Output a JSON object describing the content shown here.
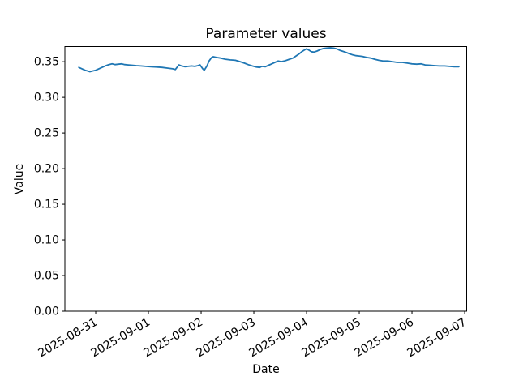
{
  "figure": {
    "background": "#ffffff",
    "text_color": "#000000",
    "spine_color": "#000000"
  },
  "chart_data": {
    "type": "line",
    "title": "Parameter values",
    "xlabel": "Date",
    "ylabel": "Value",
    "grid": false,
    "legend": "none",
    "line_color": "#1f77b4",
    "x_tick_labels": [
      "2025-08-31",
      "2025-09-01",
      "2025-09-02",
      "2025-09-03",
      "2025-09-04",
      "2025-09-05",
      "2025-09-06",
      "2025-09-07"
    ],
    "x_tick_days": [
      0,
      1,
      2,
      3,
      4,
      5,
      6,
      7
    ],
    "x_tick_rotation_deg": 30,
    "y_tick_labels": [
      "0.00",
      "0.05",
      "0.10",
      "0.15",
      "0.20",
      "0.25",
      "0.30",
      "0.35"
    ],
    "y_ticks": [
      0.0,
      0.05,
      0.1,
      0.15,
      0.2,
      0.25,
      0.3,
      0.35
    ],
    "xlim_days": [
      -0.585,
      7.038
    ],
    "ylim": [
      0,
      0.3712
    ],
    "series": [
      {
        "name": "parameter-values",
        "x_days": [
          -0.32,
          -0.26,
          -0.2,
          -0.15,
          -0.11,
          -0.06,
          0.0,
          0.06,
          0.12,
          0.18,
          0.25,
          0.31,
          0.37,
          0.43,
          0.49,
          0.55,
          0.62,
          0.69,
          0.77,
          0.86,
          0.95,
          1.05,
          1.15,
          1.26,
          1.37,
          1.46,
          1.51,
          1.58,
          1.63,
          1.69,
          1.75,
          1.82,
          1.88,
          1.94,
          1.98,
          2.03,
          2.06,
          2.11,
          2.15,
          2.2,
          2.23,
          2.29,
          2.37,
          2.46,
          2.55,
          2.65,
          2.74,
          2.82,
          2.89,
          2.97,
          3.05,
          3.11,
          3.15,
          3.22,
          3.28,
          3.34,
          3.4,
          3.46,
          3.52,
          3.58,
          3.66,
          3.74,
          3.8,
          3.86,
          3.91,
          3.95,
          4.0,
          4.05,
          4.09,
          4.14,
          4.2,
          4.26,
          4.32,
          4.38,
          4.45,
          4.51,
          4.57,
          4.63,
          4.69,
          4.75,
          4.82,
          4.88,
          4.94,
          5.0,
          5.06,
          5.14,
          5.22,
          5.29,
          5.37,
          5.45,
          5.54,
          5.63,
          5.72,
          5.82,
          5.91,
          6.0,
          6.09,
          6.17,
          6.25,
          6.34,
          6.43,
          6.52,
          6.62,
          6.71,
          6.8,
          6.89
        ],
        "values": [
          0.342,
          0.34,
          0.338,
          0.337,
          0.336,
          0.337,
          0.338,
          0.34,
          0.342,
          0.344,
          0.346,
          0.347,
          0.346,
          0.3465,
          0.347,
          0.346,
          0.3455,
          0.345,
          0.3445,
          0.344,
          0.3435,
          0.343,
          0.3425,
          0.342,
          0.341,
          0.34,
          0.339,
          0.3455,
          0.344,
          0.343,
          0.3435,
          0.344,
          0.3435,
          0.3445,
          0.3455,
          0.34,
          0.338,
          0.344,
          0.351,
          0.356,
          0.357,
          0.356,
          0.355,
          0.3535,
          0.3525,
          0.352,
          0.35,
          0.348,
          0.346,
          0.344,
          0.3425,
          0.342,
          0.3435,
          0.343,
          0.345,
          0.347,
          0.349,
          0.351,
          0.35,
          0.351,
          0.353,
          0.355,
          0.358,
          0.361,
          0.364,
          0.366,
          0.368,
          0.366,
          0.364,
          0.3635,
          0.365,
          0.367,
          0.3685,
          0.369,
          0.3695,
          0.369,
          0.368,
          0.366,
          0.3645,
          0.363,
          0.361,
          0.3595,
          0.3585,
          0.358,
          0.3575,
          0.356,
          0.355,
          0.3535,
          0.352,
          0.351,
          0.351,
          0.35,
          0.349,
          0.349,
          0.348,
          0.347,
          0.3465,
          0.347,
          0.3455,
          0.345,
          0.3445,
          0.344,
          0.344,
          0.3435,
          0.343,
          0.343
        ]
      }
    ]
  }
}
